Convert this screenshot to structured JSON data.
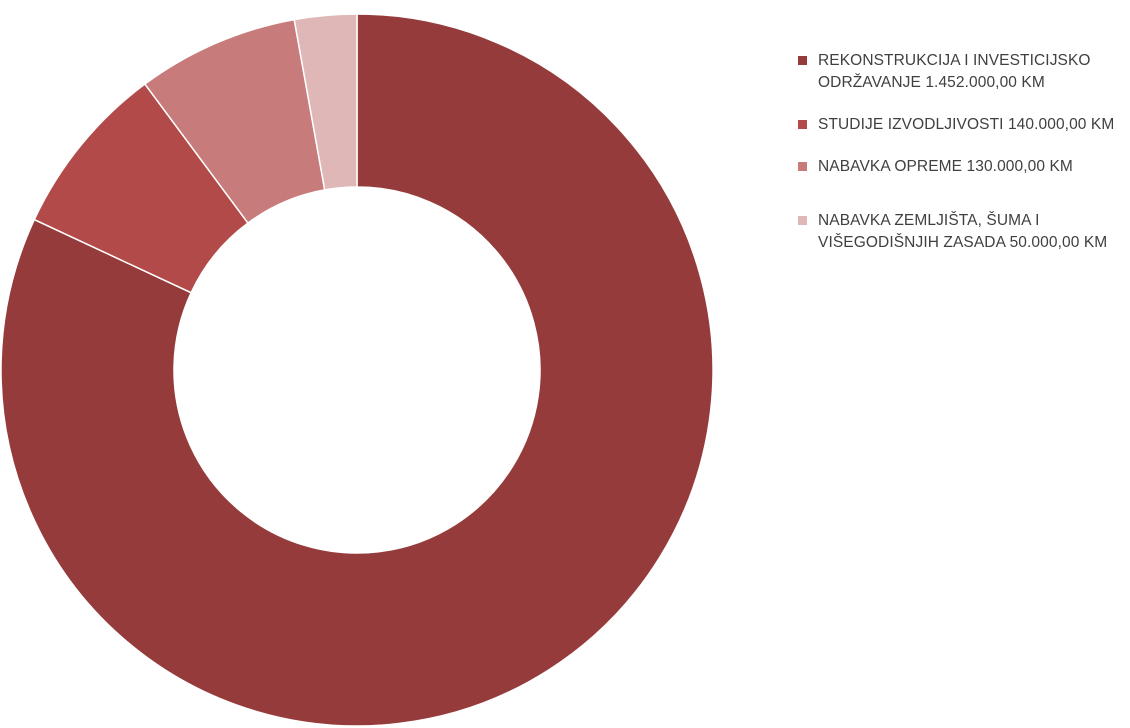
{
  "chart_data": {
    "type": "pie",
    "donut": true,
    "title": "",
    "legend_position": "right",
    "categories": [
      "REKONSTRUKCIJA I INVESTICIJSKO ODRŽAVANJE 1.452.000,00 KM",
      "STUDIJE IZVODLJIVOSTI 140.000,00 KM",
      "NABAVKA OPREME 130.000,00 KM",
      "NABAVKA ZEMLJIŠTA, ŠUMA I VIŠEGODIŠNJIH ZASADA 50.000,00 KM"
    ],
    "values": [
      1452000,
      140000,
      130000,
      50000
    ],
    "colors": [
      "#953b3b",
      "#b24a49",
      "#c77b7b",
      "#e0b7b7"
    ]
  }
}
